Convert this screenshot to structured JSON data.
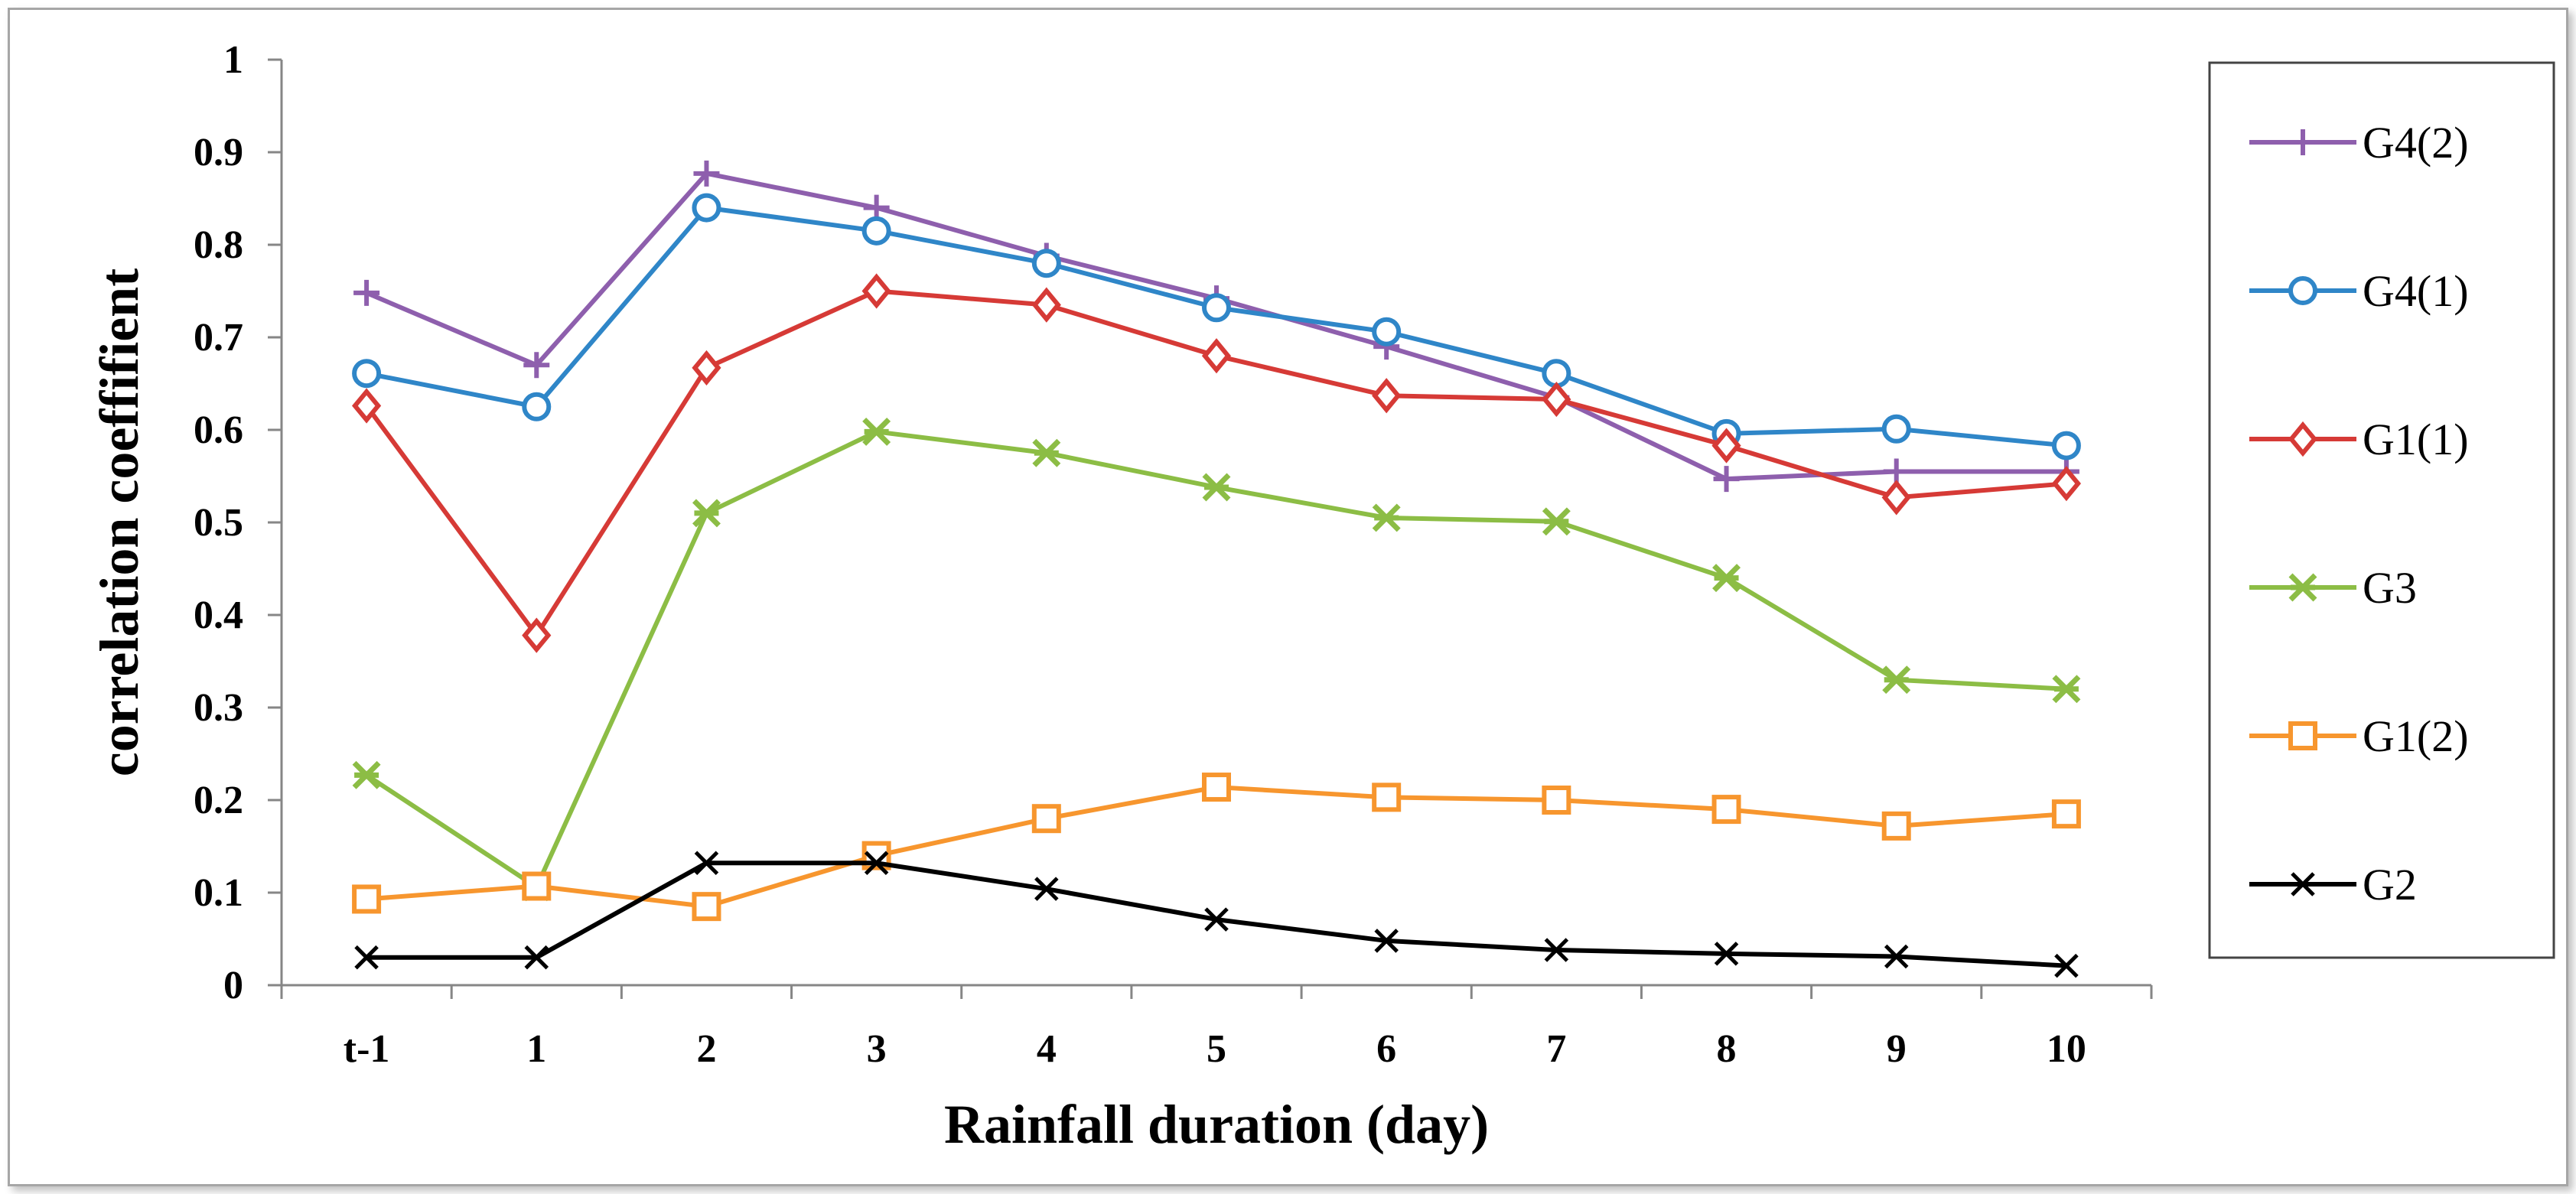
{
  "chart_data": {
    "type": "line",
    "title": "",
    "xlabel": "Rainfall duration (day)",
    "ylabel": "correlation coeffifient",
    "categories": [
      "t-1",
      "1",
      "2",
      "3",
      "4",
      "5",
      "6",
      "7",
      "8",
      "9",
      "10"
    ],
    "yticks": [
      "0",
      "0.1",
      "0.2",
      "0.3",
      "0.4",
      "0.5",
      "0.6",
      "0.7",
      "0.8",
      "0.9",
      "1"
    ],
    "ylim": [
      0,
      1
    ],
    "grid": false,
    "legend_position": "right",
    "series": [
      {
        "name": "G4(2)",
        "color": "#8e5fad",
        "marker": "plus",
        "values": [
          0.748,
          0.67,
          0.877,
          0.84,
          0.788,
          0.742,
          0.69,
          0.635,
          0.547,
          0.555,
          0.555
        ]
      },
      {
        "name": "G4(1)",
        "color": "#2f86c8",
        "marker": "circle",
        "values": [
          0.661,
          0.625,
          0.84,
          0.815,
          0.78,
          0.732,
          0.706,
          0.661,
          0.596,
          0.601,
          0.583
        ]
      },
      {
        "name": "G1(1)",
        "color": "#d63a36",
        "marker": "diamond",
        "values": [
          0.626,
          0.378,
          0.667,
          0.75,
          0.735,
          0.68,
          0.637,
          0.633,
          0.583,
          0.527,
          0.542
        ]
      },
      {
        "name": "G3",
        "color": "#8cbd45",
        "marker": "star",
        "values": [
          0.227,
          0.106,
          0.51,
          0.598,
          0.575,
          0.538,
          0.505,
          0.501,
          0.44,
          0.33,
          0.32
        ]
      },
      {
        "name": "G1(2)",
        "color": "#f7962e",
        "marker": "square",
        "values": [
          0.093,
          0.107,
          0.085,
          0.14,
          0.18,
          0.214,
          0.203,
          0.2,
          0.19,
          0.172,
          0.185
        ]
      },
      {
        "name": "G2",
        "color": "#000000",
        "marker": "x",
        "values": [
          0.03,
          0.03,
          0.132,
          0.132,
          0.104,
          0.071,
          0.048,
          0.038,
          0.034,
          0.031,
          0.021
        ]
      }
    ]
  }
}
